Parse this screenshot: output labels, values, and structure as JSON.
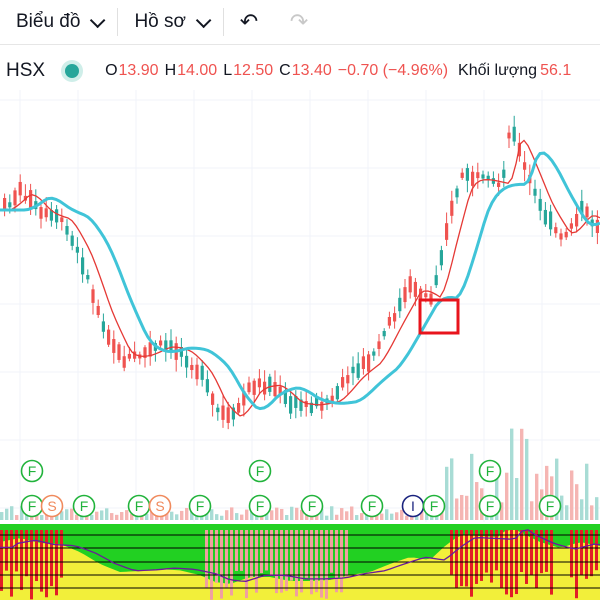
{
  "toolbar": {
    "chart_label": "Biểu đồ",
    "profile_label": "Hồ sơ",
    "undo_icon": "undo-icon",
    "redo_icon": "redo-icon"
  },
  "legend": {
    "exchange": "HSX",
    "status_color": "#26a69a",
    "o_label": "O",
    "o_value": "13.90",
    "h_label": "H",
    "h_value": "14.00",
    "l_label": "L",
    "l_value": "12.50",
    "c_label": "C",
    "c_value": "13.40",
    "change": "−0.70 (−4.96%)",
    "volume_label": "Khối lượng",
    "volume_value": "56.1"
  },
  "colors": {
    "up": "#26a69a",
    "down": "#ef5350",
    "ma_fast": "#e53935",
    "ma_slow": "#40c4d8",
    "marker_box": "#e8141c"
  },
  "events": [
    {
      "label": "F",
      "row": 1,
      "slot": 0,
      "color": "#21b33b"
    },
    {
      "label": "S",
      "row": 1,
      "slot": 1,
      "color": "#f08a5d"
    },
    {
      "label": "F",
      "row": 1,
      "slot": 2,
      "color": "#21b33b"
    },
    {
      "label": "F",
      "row": 1,
      "slot": 3,
      "color": "#21b33b"
    },
    {
      "label": "S",
      "row": 1,
      "slot": 4,
      "color": "#f08a5d"
    },
    {
      "label": "F",
      "row": 1,
      "slot": 5,
      "color": "#21b33b"
    },
    {
      "label": "F",
      "row": 1,
      "slot": 6,
      "color": "#21b33b"
    },
    {
      "label": "F",
      "row": 1,
      "slot": 7,
      "color": "#21b33b"
    },
    {
      "label": "F",
      "row": 1,
      "slot": 8,
      "color": "#21b33b"
    },
    {
      "label": "I",
      "row": 1,
      "slot": 9,
      "color": "#1a237e"
    },
    {
      "label": "F",
      "row": 1,
      "slot": 10,
      "color": "#21b33b"
    },
    {
      "label": "F",
      "row": 1,
      "slot": 11,
      "color": "#21b33b"
    },
    {
      "label": "F",
      "row": 1,
      "slot": 12,
      "color": "#21b33b"
    },
    {
      "label": "F",
      "row": 0,
      "slot": 0,
      "color": "#21b33b"
    },
    {
      "label": "F",
      "row": 0,
      "slot": 6,
      "color": "#21b33b"
    },
    {
      "label": "F",
      "row": 0,
      "slot": 11,
      "color": "#21b33b"
    }
  ]
}
